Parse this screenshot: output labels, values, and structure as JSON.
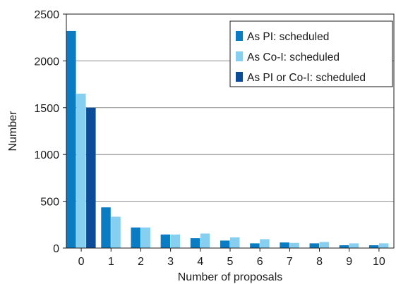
{
  "chart_data": {
    "type": "bar",
    "title": "",
    "xlabel": "Number of proposals",
    "ylabel": "Number",
    "categories": [
      "0",
      "1",
      "2",
      "3",
      "4",
      "5",
      "6",
      "7",
      "8",
      "9",
      "10"
    ],
    "ylim": [
      0,
      2500
    ],
    "yticks": [
      "0",
      "500",
      "1000",
      "1500",
      "2000",
      "2500"
    ],
    "grid": "horizontal",
    "legend_position": "top-right",
    "series": [
      {
        "name": "As PI: scheduled",
        "color": "#0a7cc4",
        "values": [
          2320,
          435,
          220,
          145,
          105,
          80,
          50,
          60,
          50,
          30,
          30
        ]
      },
      {
        "name": "As Co-I: scheduled",
        "color": "#86cff1",
        "values": [
          1650,
          335,
          220,
          145,
          155,
          115,
          95,
          55,
          65,
          50,
          50
        ]
      },
      {
        "name": "As PI or Co-I: scheduled",
        "color": "#0b4c98",
        "values": [
          1500,
          null,
          null,
          null,
          null,
          null,
          null,
          null,
          null,
          null,
          null
        ]
      }
    ]
  }
}
